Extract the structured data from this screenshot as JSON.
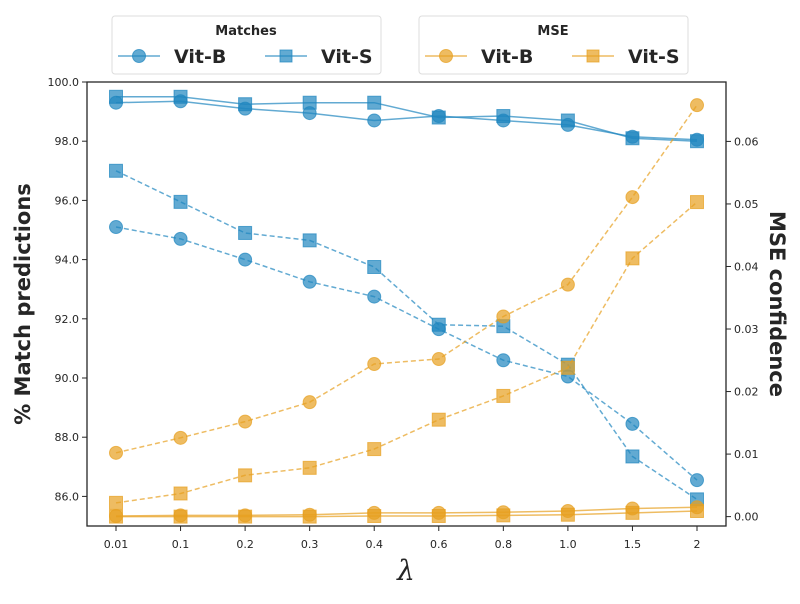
{
  "chart_data": {
    "type": "line",
    "xlabel": "λ",
    "ylabel_left": "% Match predictions",
    "ylabel_right": "MSE confidence",
    "categories": [
      "0.01",
      "0.1",
      "0.2",
      "0.3",
      "0.4",
      "0.6",
      "0.8",
      "1.0",
      "1.5",
      "2"
    ],
    "ylim_left": [
      85.0,
      100.0
    ],
    "yticks_left": [
      "86.0",
      "88.0",
      "90.0",
      "92.0",
      "94.0",
      "96.0",
      "98.0",
      "100.0"
    ],
    "ylim_right": [
      -0.0015,
      0.0695
    ],
    "yticks_right": [
      "0.00",
      "0.01",
      "0.02",
      "0.03",
      "0.04",
      "0.05",
      "0.06"
    ],
    "colors": {
      "matches": "#1f86bf",
      "mse": "#e79f20",
      "axis": "#262626"
    },
    "legends": [
      {
        "title": "Matches",
        "entries": [
          {
            "label": "Vit-B",
            "marker": "circle"
          },
          {
            "label": "Vit-S",
            "marker": "square"
          }
        ]
      },
      {
        "title": "MSE",
        "entries": [
          {
            "label": "Vit-B",
            "marker": "circle"
          },
          {
            "label": "Vit-S",
            "marker": "square"
          }
        ]
      }
    ],
    "series": [
      {
        "name": "Matches Vit-B (solid)",
        "group": "matches",
        "model": "Vit-B",
        "marker": "circle",
        "linestyle": "solid",
        "axis": "left",
        "values": [
          99.3,
          99.35,
          99.1,
          98.95,
          98.7,
          98.85,
          98.7,
          98.55,
          98.15,
          98.05
        ]
      },
      {
        "name": "Matches Vit-S (solid)",
        "group": "matches",
        "model": "Vit-S",
        "marker": "square",
        "linestyle": "solid",
        "axis": "left",
        "values": [
          99.5,
          99.5,
          99.25,
          99.3,
          99.3,
          98.8,
          98.85,
          98.7,
          98.1,
          98.0
        ]
      },
      {
        "name": "Matches Vit-B (dashed)",
        "group": "matches",
        "model": "Vit-B",
        "marker": "circle",
        "linestyle": "dashed",
        "axis": "left",
        "values": [
          95.1,
          94.7,
          94.0,
          93.25,
          92.75,
          91.65,
          90.6,
          90.05,
          88.45,
          86.55
        ]
      },
      {
        "name": "Matches Vit-S (dashed)",
        "group": "matches",
        "model": "Vit-S",
        "marker": "square",
        "linestyle": "dashed",
        "axis": "left",
        "values": [
          97.0,
          95.95,
          94.9,
          94.65,
          93.75,
          91.8,
          91.75,
          90.45,
          87.35,
          85.9
        ]
      },
      {
        "name": "MSE Vit-B (dashed)",
        "group": "mse",
        "model": "Vit-B",
        "marker": "circle",
        "linestyle": "dashed",
        "axis": "right",
        "values": [
          0.0102,
          0.0126,
          0.0152,
          0.0183,
          0.0244,
          0.0252,
          0.032,
          0.0371,
          0.0511,
          0.0658
        ]
      },
      {
        "name": "MSE Vit-S (dashed)",
        "group": "mse",
        "model": "Vit-S",
        "marker": "square",
        "linestyle": "dashed",
        "axis": "right",
        "values": [
          0.0022,
          0.0037,
          0.0066,
          0.0078,
          0.0108,
          0.0155,
          0.0193,
          0.0238,
          0.0413,
          0.0503
        ]
      },
      {
        "name": "MSE Vit-B (solid)",
        "group": "mse",
        "model": "Vit-B",
        "marker": "circle",
        "linestyle": "solid",
        "axis": "right",
        "values": [
          0.0001,
          0.0002,
          0.0002,
          0.0003,
          0.0006,
          0.0006,
          0.0007,
          0.0009,
          0.0013,
          0.0015
        ]
      },
      {
        "name": "MSE Vit-S (solid)",
        "group": "mse",
        "model": "Vit-S",
        "marker": "square",
        "linestyle": "solid",
        "axis": "right",
        "values": [
          0.0,
          0.0,
          0.0,
          0.0,
          0.0001,
          0.0001,
          0.0002,
          0.0003,
          0.0006,
          0.0009
        ]
      }
    ]
  }
}
